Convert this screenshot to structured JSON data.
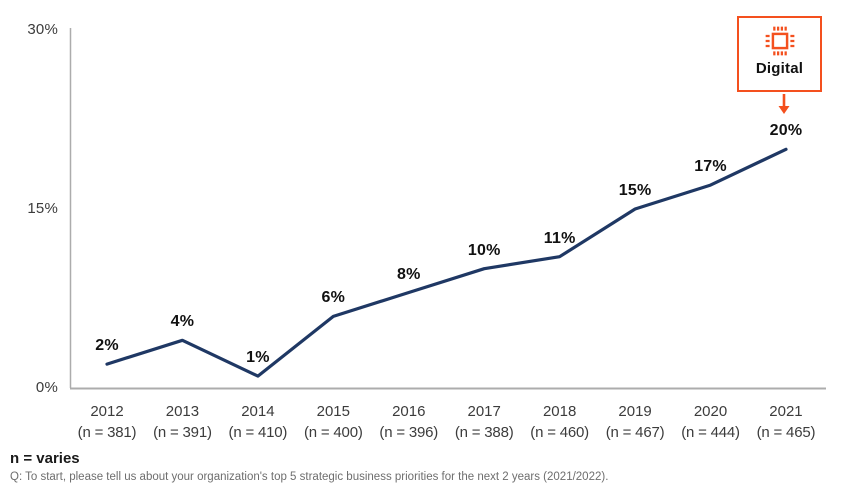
{
  "colors": {
    "accent": "#F4501E",
    "line": "#1F3864",
    "axis": "#ACACAC",
    "tick_text": "#3C3C3C",
    "data_label": "#111111",
    "footnote": "#6E6E6E"
  },
  "chart_data": {
    "type": "line",
    "series_name": "Digital",
    "categories": [
      "2012",
      "2013",
      "2014",
      "2015",
      "2016",
      "2017",
      "2018",
      "2019",
      "2020",
      "2021"
    ],
    "n_labels": [
      "(n = 381)",
      "(n = 391)",
      "(n = 410)",
      "(n = 400)",
      "(n = 396)",
      "(n = 388)",
      "(n = 460)",
      "(n = 467)",
      "(n = 444)",
      "(n = 465)"
    ],
    "values": [
      2,
      4,
      1,
      6,
      8,
      10,
      11,
      15,
      17,
      20
    ],
    "value_label_suffix": "%",
    "ylim": [
      0,
      30
    ],
    "yticks": [
      {
        "value": 0,
        "label": "0%"
      },
      {
        "value": 15,
        "label": "15%"
      },
      {
        "value": 30,
        "label": "30%"
      }
    ],
    "grid": false,
    "legend_position": "callout-top-right",
    "xlabel": "",
    "ylabel": ""
  },
  "callout": {
    "label": "Digital",
    "icon": "chip-icon"
  },
  "footer": {
    "n_varies": "n = varies",
    "question": "Q: To start, please tell us about your organization's top 5 strategic business priorities for the next 2 years (2021/2022)."
  }
}
